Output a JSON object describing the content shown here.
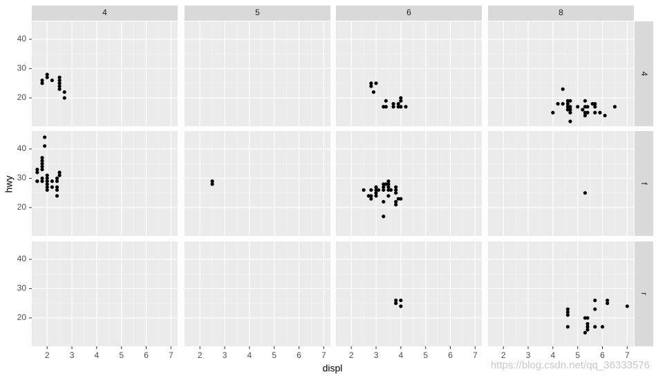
{
  "chart_data": {
    "type": "scatter",
    "x_label": "displ",
    "y_label": "hwy",
    "xlim": [
      1.38,
      7.27
    ],
    "xticks": [
      2,
      3,
      4,
      5,
      6,
      7
    ],
    "ylim": [
      10.35,
      46.1
    ],
    "yticks": [
      20,
      30,
      40
    ],
    "point_color": "#000000",
    "grid": true,
    "facet_cols": [
      "4",
      "5",
      "6",
      "8"
    ],
    "facet_rows": [
      {
        "label": "4",
        "panels": [
          {
            "x": [
              1.8,
              1.8,
              2.0,
              2.0,
              2.2,
              2.5,
              2.5,
              2.5,
              2.5,
              2.5,
              2.7,
              2.7
            ],
            "y": [
              25,
              26,
              27,
              28,
              26,
              27,
              26,
              25,
              24,
              23,
              22,
              20
            ]
          },
          {
            "x": [],
            "y": []
          },
          {
            "x": [
              2.8,
              2.8,
              3.0,
              2.9,
              3.3,
              3.4,
              3.4,
              3.7,
              3.7,
              3.9,
              4.0,
              4.0,
              4.0,
              4.2,
              3.9
            ],
            "y": [
              25,
              24,
              25,
              22,
              17,
              17,
              19,
              18,
              17,
              17,
              20,
              19,
              17,
              17,
              18
            ]
          },
          {
            "x": [
              4.0,
              4.2,
              4.4,
              4.4,
              4.6,
              4.6,
              4.6,
              4.6,
              4.7,
              4.7,
              4.7,
              4.7,
              4.7,
              5.0,
              5.2,
              5.3,
              5.3,
              5.3,
              5.3,
              5.4,
              5.4,
              5.6,
              5.7,
              5.7,
              5.7,
              5.9,
              6.1,
              6.5
            ],
            "y": [
              15,
              18,
              18,
              23,
              19,
              18,
              17,
              16,
              19,
              17,
              16,
              15,
              12,
              17,
              16,
              19,
              17,
              15,
              14,
              17,
              15,
              18,
              18,
              17,
              15,
              15,
              14,
              17
            ]
          }
        ]
      },
      {
        "label": "f",
        "panels": [
          {
            "x": [
              1.6,
              1.6,
              1.6,
              1.6,
              1.8,
              1.8,
              1.8,
              1.8,
              1.8,
              1.8,
              1.8,
              1.9,
              1.9,
              2.0,
              2.0,
              2.0,
              2.0,
              2.0,
              2.0,
              2.2,
              2.2,
              2.4,
              2.4,
              2.4,
              2.4,
              2.4,
              2.5,
              2.5
            ],
            "y": [
              33,
              32,
              29,
              29,
              29,
              30,
              33,
              34,
              35,
              36,
              37,
              44,
              41,
              26,
              27,
              28,
              29,
              30,
              31,
              27,
              29,
              24,
              26,
              27,
              29,
              30,
              31,
              32
            ]
          },
          {
            "x": [
              2.5,
              2.5
            ],
            "y": [
              28,
              29
            ]
          },
          {
            "x": [
              2.5,
              2.7,
              2.8,
              2.8,
              2.8,
              3.0,
              3.0,
              3.0,
              3.0,
              3.1,
              3.3,
              3.3,
              3.3,
              3.3,
              3.4,
              3.5,
              3.5,
              3.5,
              3.5,
              3.6,
              3.8,
              3.8,
              3.8,
              3.8,
              3.8,
              3.9,
              4.0,
              3.3,
              3.5
            ],
            "y": [
              26,
              24,
              23,
              24,
              26,
              24,
              25,
              26,
              27,
              26,
              17,
              22,
              26,
              27,
              28,
              29,
              28,
              27,
              26,
              26,
              21,
              22,
              25,
              26,
              27,
              23,
              23,
              28,
              24
            ]
          },
          {
            "x": [
              5.3
            ],
            "y": [
              25
            ]
          }
        ]
      },
      {
        "label": "r",
        "panels": [
          {
            "x": [],
            "y": []
          },
          {
            "x": [],
            "y": []
          },
          {
            "x": [
              3.8,
              3.8,
              4.0,
              4.0
            ],
            "y": [
              26,
              25,
              26,
              24
            ]
          },
          {
            "x": [
              4.6,
              4.6,
              4.6,
              4.6,
              5.3,
              5.4,
              5.4,
              5.4,
              5.4,
              5.3,
              5.7,
              5.7,
              5.7,
              6.0,
              6.2,
              6.2,
              7.0
            ],
            "y": [
              23,
              22,
              21,
              17,
              20,
              20,
              18,
              17,
              16,
              15,
              26,
              23,
              17,
              17,
              26,
              25,
              24
            ]
          }
        ]
      }
    ],
    "watermark": "https://blog.csdn.net/qq_36333576"
  }
}
